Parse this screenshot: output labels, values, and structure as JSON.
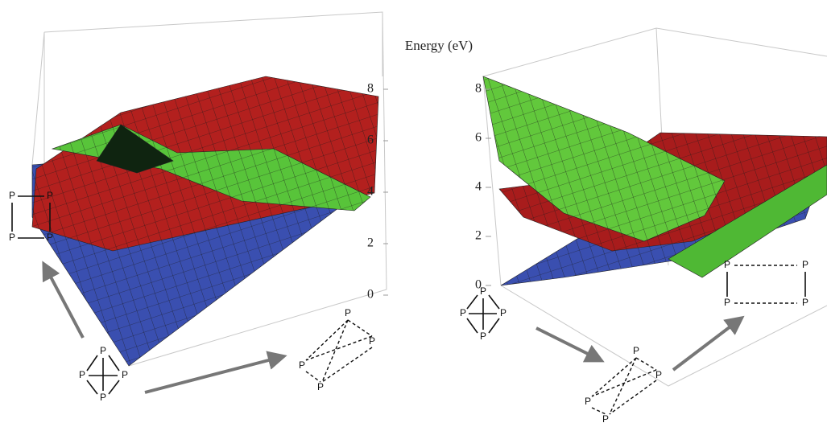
{
  "axis_label": "Energy (eV)",
  "panels": [
    {
      "zticks": [
        0,
        2,
        4,
        6,
        8
      ]
    },
    {
      "zticks": [
        0,
        2,
        4,
        6,
        8
      ]
    }
  ],
  "molecules": [
    {
      "atoms": [
        "P",
        "P",
        "P",
        "P"
      ]
    },
    {
      "atoms": [
        "P",
        "P",
        "P",
        "P"
      ]
    },
    {
      "atoms": [
        "P",
        "P",
        "P",
        "P"
      ]
    },
    {
      "atoms": [
        "P",
        "P",
        "P",
        "P"
      ]
    },
    {
      "atoms": [
        "P",
        "P",
        "P",
        "P"
      ]
    },
    {
      "atoms": [
        "P",
        "P",
        "P",
        "P"
      ]
    }
  ]
}
